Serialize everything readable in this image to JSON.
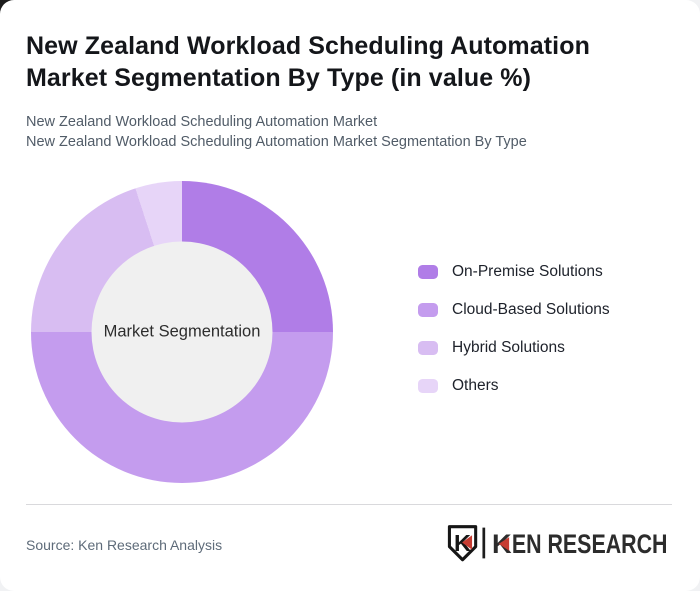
{
  "page": {
    "background": "#f1f2f4",
    "card_background": "#ffffff"
  },
  "header": {
    "title_lines": [
      "New Zealand Workload Scheduling Automation",
      "Market Segmentation By Type (in value %)"
    ],
    "subtitle_lines": [
      "New Zealand Workload Scheduling Automation Market",
      "New Zealand Workload Scheduling Automation Market Segmentation By Type"
    ]
  },
  "chart_data": {
    "type": "pie",
    "variant": "donut",
    "title": "New Zealand Workload Scheduling Automation Market Segmentation By Type (in value %)",
    "center_label": "Market Segmentation",
    "unit": "%",
    "categories": [
      "On-Premise Solutions",
      "Cloud-Based Solutions",
      "Hybrid Solutions",
      "Others"
    ],
    "values": [
      25,
      50,
      20,
      5
    ],
    "colors": [
      "#b07de7",
      "#c49cee",
      "#d8bdf2",
      "#e7d5f8"
    ],
    "start_angle_deg": 0,
    "direction": "clockwise",
    "inner_radius_ratio": 0.6,
    "inner_circle_color": "#f0f0f0",
    "legend_position": "right",
    "grid": false
  },
  "footer": {
    "source_label": "Source: Ken Research Analysis",
    "logo": {
      "shield_letter": "K",
      "wordmark": "KEN RESEARCH",
      "accent_color": "#c63c32",
      "text_color": "#2c2c2c"
    }
  }
}
